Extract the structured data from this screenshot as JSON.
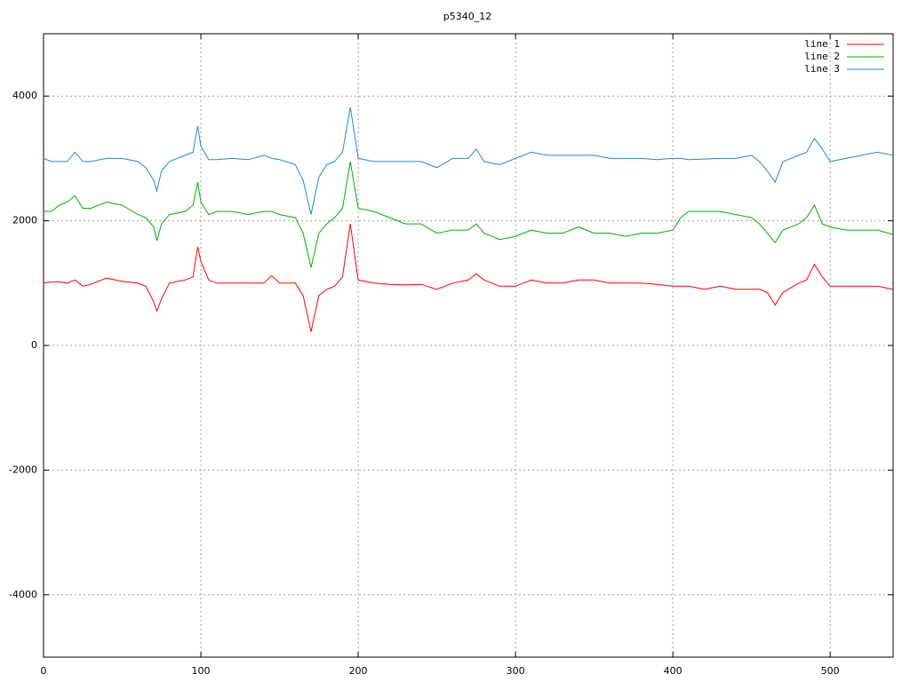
{
  "chart_data": {
    "type": "line",
    "title": "p5340_12",
    "x": [
      0,
      5,
      10,
      15,
      20,
      25,
      30,
      40,
      50,
      60,
      65,
      70,
      72,
      75,
      80,
      90,
      95,
      98,
      100,
      105,
      110,
      120,
      130,
      140,
      145,
      150,
      160,
      165,
      170,
      175,
      180,
      185,
      190,
      195,
      200,
      210,
      220,
      230,
      240,
      250,
      260,
      270,
      275,
      280,
      290,
      300,
      310,
      320,
      330,
      340,
      350,
      360,
      370,
      380,
      390,
      400,
      405,
      410,
      420,
      430,
      440,
      450,
      455,
      460,
      465,
      470,
      480,
      485,
      490,
      495,
      500,
      510,
      520,
      530,
      540
    ],
    "series": [
      {
        "name": "line 1",
        "color": "#ff0000",
        "values": [
          1000,
          1020,
          1020,
          1000,
          1050,
          950,
          980,
          1080,
          1030,
          1000,
          950,
          700,
          550,
          750,
          1000,
          1050,
          1100,
          1580,
          1350,
          1050,
          1000,
          1000,
          1000,
          1000,
          1120,
          1000,
          1000,
          800,
          220,
          800,
          900,
          950,
          1100,
          1950,
          1050,
          1000,
          980,
          970,
          980,
          900,
          1000,
          1050,
          1150,
          1050,
          950,
          950,
          1050,
          1000,
          1000,
          1050,
          1050,
          1000,
          1000,
          1000,
          980,
          950,
          950,
          950,
          900,
          950,
          900,
          900,
          900,
          850,
          650,
          850,
          1000,
          1050,
          1300,
          1100,
          950,
          950,
          950,
          950,
          900
        ]
      },
      {
        "name": "line 2",
        "color": "#00b000",
        "values": [
          2150,
          2150,
          2250,
          2300,
          2400,
          2200,
          2200,
          2300,
          2250,
          2100,
          2050,
          1900,
          1680,
          1950,
          2100,
          2150,
          2250,
          2620,
          2300,
          2100,
          2150,
          2150,
          2100,
          2150,
          2150,
          2100,
          2050,
          1800,
          1250,
          1800,
          1950,
          2050,
          2200,
          2950,
          2200,
          2150,
          2050,
          1950,
          1950,
          1800,
          1850,
          1850,
          1950,
          1800,
          1700,
          1750,
          1850,
          1800,
          1800,
          1900,
          1800,
          1800,
          1750,
          1800,
          1800,
          1850,
          2050,
          2150,
          2150,
          2150,
          2100,
          2050,
          1950,
          1800,
          1650,
          1850,
          1950,
          2050,
          2250,
          1950,
          1900,
          1850,
          1850,
          1850,
          1780
        ]
      },
      {
        "name": "line 3",
        "color": "#1f8ad8",
        "values": [
          3000,
          2950,
          2950,
          2950,
          3100,
          2950,
          2950,
          3000,
          3000,
          2950,
          2850,
          2650,
          2480,
          2800,
          2950,
          3050,
          3100,
          3520,
          3200,
          2980,
          2980,
          3000,
          2980,
          3050,
          3000,
          2980,
          2900,
          2650,
          2100,
          2700,
          2900,
          2950,
          3100,
          3820,
          3000,
          2950,
          2950,
          2950,
          2950,
          2850,
          3000,
          3000,
          3150,
          2950,
          2900,
          3000,
          3100,
          3050,
          3050,
          3050,
          3050,
          3000,
          3000,
          3000,
          2980,
          3000,
          3000,
          2980,
          2990,
          3000,
          3000,
          3050,
          2950,
          2800,
          2620,
          2950,
          3050,
          3100,
          3320,
          3150,
          2950,
          3000,
          3050,
          3100,
          3050
        ]
      }
    ],
    "xlim": [
      0,
      540
    ],
    "xticks": [
      0,
      100,
      200,
      300,
      400,
      500
    ],
    "ylim": [
      -5000,
      5000
    ],
    "yticks": [
      -4000,
      -2000,
      0,
      2000,
      4000
    ],
    "grid": true,
    "legend": "top-right"
  }
}
